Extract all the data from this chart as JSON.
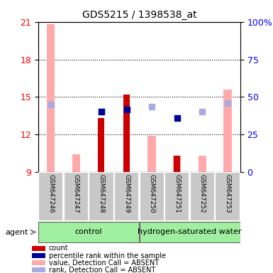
{
  "title": "GDS5215 / 1398538_at",
  "samples": [
    "GSM647246",
    "GSM647247",
    "GSM647248",
    "GSM647249",
    "GSM647250",
    "GSM647251",
    "GSM647252",
    "GSM647253"
  ],
  "ylim_left": [
    9,
    21
  ],
  "ylim_right": [
    0,
    100
  ],
  "yticks_left": [
    9,
    12,
    15,
    18,
    21
  ],
  "ytick_labels_right": [
    "0",
    "25",
    "50",
    "75",
    "100%"
  ],
  "yticks_right": [
    0,
    25,
    50,
    75,
    100
  ],
  "value_absent": [
    20.8,
    10.4,
    null,
    null,
    11.9,
    10.3,
    10.3,
    15.6
  ],
  "rank_absent": [
    14.4,
    null,
    13.8,
    null,
    14.2,
    null,
    13.8,
    14.5
  ],
  "count_present": [
    null,
    null,
    13.3,
    15.2,
    null,
    10.3,
    null,
    null
  ],
  "percentile_present": [
    null,
    null,
    13.8,
    14.0,
    null,
    13.3,
    null,
    null
  ],
  "color_count": "#cc0000",
  "color_percentile": "#000099",
  "color_value_absent": "#ffaaaa",
  "color_rank_absent": "#aaaadd",
  "grid_lines": [
    12,
    15,
    18
  ],
  "legend_items": [
    [
      "#cc0000",
      "count"
    ],
    [
      "#000099",
      "percentile rank within the sample"
    ],
    [
      "#ffaaaa",
      "value, Detection Call = ABSENT"
    ],
    [
      "#aaaadd",
      "rank, Detection Call = ABSENT"
    ]
  ]
}
